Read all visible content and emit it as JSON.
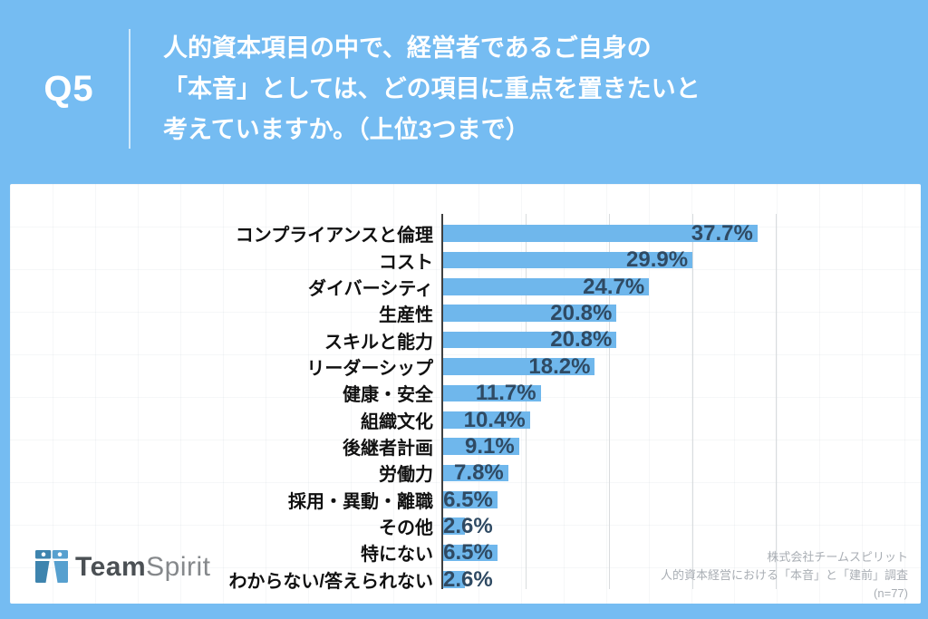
{
  "header": {
    "question_number": "Q5",
    "question_lines": [
      "人的資本項目の中で、経営者であるご自身の",
      "「本音」としては、どの項目に重点を置きたいと",
      "考えていますか。（上位3つまで）"
    ]
  },
  "chart_data": {
    "type": "bar",
    "orientation": "horizontal",
    "categories": [
      "コンプライアンスと倫理",
      "コスト",
      "ダイバーシティ",
      "生産性",
      "スキルと能力",
      "リーダーシップ",
      "健康・安全",
      "組織文化",
      "後継者計画",
      "労働力",
      "採用・異動・離職",
      "その他",
      "特にない",
      "わからない/答えられない"
    ],
    "values": [
      37.7,
      29.9,
      24.7,
      20.8,
      20.8,
      18.2,
      11.7,
      10.4,
      9.1,
      7.8,
      6.5,
      2.6,
      6.5,
      2.6
    ],
    "value_labels": [
      "37.7%",
      "29.9%",
      "24.7%",
      "20.8%",
      "20.8%",
      "18.2%",
      "11.7%",
      "10.4%",
      "9.1%",
      "7.8%",
      "6.5%",
      "2.6%",
      "6.5%",
      "2.6%"
    ],
    "title": "",
    "xlabel": "",
    "ylabel": "",
    "xlim": [
      0,
      45
    ],
    "gridlines_percent": [
      10,
      20,
      30,
      40
    ],
    "grid": true,
    "legend": false,
    "bar_color": "#6FB7EC",
    "value_label_color": "#2F4A63",
    "category_label_color": "#111111"
  },
  "footer": {
    "logo_team": "Team",
    "logo_spirit": "Spirit",
    "attribution_lines": [
      "株式会社チームスピリット",
      "人的資本経営における「本音」と「建前」調査",
      "(n=77)"
    ]
  },
  "colors": {
    "background_blue": "#75BCF2",
    "card_white": "#FFFFFF",
    "header_text": "#FFFFFF",
    "axis_color": "#3F3F3F",
    "gridline_color": "#D9DCDE"
  }
}
